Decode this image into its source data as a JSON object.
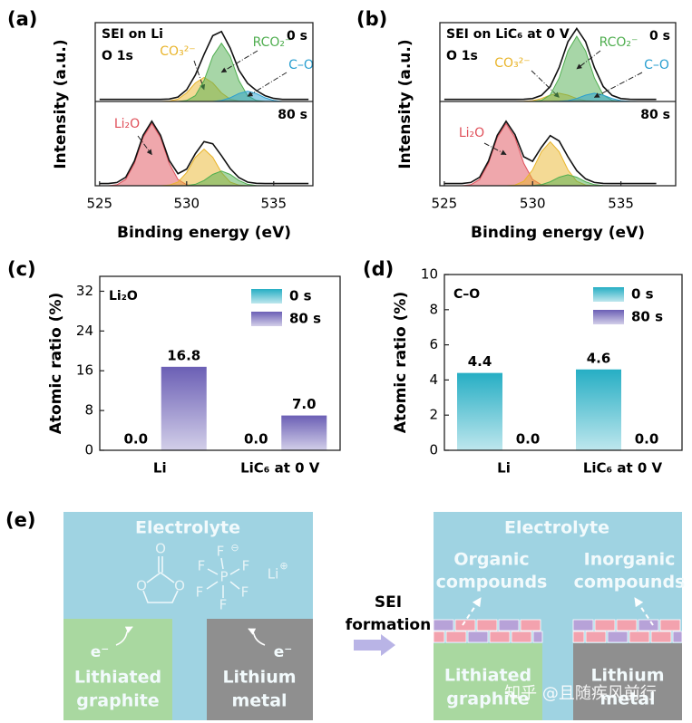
{
  "chart_data": [
    {
      "type": "xps",
      "panel_label": "(a)",
      "x_label": "Binding energy (eV)",
      "y_label": "Intensity (a.u.)",
      "xlim": [
        524.75,
        537.25
      ],
      "xticks": [
        525,
        530,
        535
      ],
      "ylim": [
        0,
        1.15
      ],
      "x": [
        525,
        525.5,
        526,
        526.5,
        527,
        527.5,
        528,
        528.5,
        529,
        529.5,
        530,
        530.5,
        531,
        531.5,
        532,
        532.5,
        533,
        533.5,
        534,
        534.5,
        535,
        535.5,
        536,
        536.5,
        537
      ],
      "subplots": [
        {
          "title": "SEI on Li",
          "core_level": "O 1s",
          "time": "0 s",
          "envelope": {
            "color": "#111111",
            "values": [
              0.03,
              0.03,
              0.03,
              0.03,
              0.03,
              0.03,
              0.03,
              0.03,
              0.036,
              0.065,
              0.17,
              0.386,
              0.686,
              0.96,
              1.021,
              0.778,
              0.458,
              0.265,
              0.16,
              0.084,
              0.045,
              0.03,
              0.03,
              0.03,
              0.03
            ]
          },
          "series": [
            {
              "name": "CO₃²⁻",
              "color": "#e9b52c",
              "values": [
                0,
                0,
                0,
                0,
                0,
                0,
                0,
                0,
                0.006,
                0.035,
                0.126,
                0.271,
                0.35,
                0.271,
                0.126,
                0.035,
                0.006,
                0,
                0,
                0,
                0,
                0,
                0,
                0,
                0
              ]
            },
            {
              "name": "RCO₂⁻",
              "color": "#4fae4f",
              "values": [
                0,
                0,
                0,
                0,
                0,
                0,
                0,
                0,
                0,
                0,
                0.014,
                0.085,
                0.306,
                0.659,
                0.85,
                0.659,
                0.306,
                0.085,
                0.014,
                0,
                0,
                0,
                0,
                0,
                0
              ]
            },
            {
              "name": "C–O",
              "color": "#2a9fd0",
              "values": [
                0,
                0,
                0,
                0,
                0,
                0,
                0,
                0,
                0,
                0,
                0,
                0,
                0,
                0,
                0.015,
                0.054,
                0.116,
                0.15,
                0.116,
                0.054,
                0.015,
                0,
                0,
                0,
                0
              ]
            }
          ]
        },
        {
          "time": "80 s",
          "envelope": {
            "color": "#111111",
            "values": [
              0.03,
              0.03,
              0.044,
              0.115,
              0.336,
              0.689,
              0.88,
              0.689,
              0.345,
              0.165,
              0.227,
              0.438,
              0.602,
              0.573,
              0.41,
              0.235,
              0.111,
              0.05,
              0.033,
              0.03,
              0.03,
              0.03,
              0.03,
              0.03,
              0.03
            ]
          },
          "series": [
            {
              "name": "Li₂O",
              "color": "#e0505a",
              "values": [
                0,
                0,
                0.014,
                0.085,
                0.306,
                0.659,
                0.85,
                0.659,
                0.306,
                0.085,
                0.014,
                0,
                0,
                0,
                0,
                0,
                0,
                0,
                0,
                0,
                0,
                0,
                0,
                0,
                0
              ]
            },
            {
              "color": "#e9b52c",
              "values": [
                0,
                0,
                0,
                0,
                0,
                0,
                0,
                0,
                0.009,
                0.05,
                0.18,
                0.388,
                0.5,
                0.388,
                0.18,
                0.05,
                0.009,
                0,
                0,
                0,
                0,
                0,
                0,
                0,
                0
              ]
            },
            {
              "color": "#4fae4f",
              "values": [
                0,
                0,
                0,
                0,
                0,
                0,
                0,
                0,
                0,
                0,
                0.003,
                0.02,
                0.072,
                0.155,
                0.2,
                0.155,
                0.072,
                0.02,
                0.003,
                0,
                0,
                0,
                0,
                0,
                0
              ]
            }
          ]
        }
      ]
    },
    {
      "type": "xps",
      "panel_label": "(b)",
      "x_label": "Binding energy (eV)",
      "y_label": "Intensity (a.u.)",
      "xlim": [
        524.75,
        538.1
      ],
      "xticks": [
        525,
        530,
        535
      ],
      "ylim": [
        0,
        1.15
      ],
      "x": [
        525,
        525.5,
        526,
        526.5,
        527,
        527.5,
        528,
        528.5,
        529,
        529.5,
        530,
        530.5,
        531,
        531.5,
        532,
        532.5,
        533,
        533.5,
        534,
        534.5,
        535,
        535.5,
        536,
        536.5,
        537
      ],
      "subplots": [
        {
          "title": "SEI on LiC₆ at 0 V",
          "core_level": "O 1s",
          "time": "0 s",
          "envelope": {
            "color": "#111111",
            "values": [
              0.03,
              0.03,
              0.03,
              0.03,
              0.03,
              0.03,
              0.03,
              0.03,
              0.03,
              0.032,
              0.042,
              0.089,
              0.218,
              0.494,
              0.871,
              1.066,
              0.871,
              0.494,
              0.218,
              0.089,
              0.042,
              0.032,
              0.03,
              0.03,
              0.03
            ]
          },
          "series": [
            {
              "name": "CO₃²⁻",
              "color": "#e9b52c",
              "values": [
                0,
                0,
                0,
                0,
                0,
                0,
                0,
                0,
                0,
                0.002,
                0.012,
                0.043,
                0.093,
                0.12,
                0.093,
                0.043,
                0.012,
                0.002,
                0,
                0,
                0,
                0,
                0,
                0,
                0
              ]
            },
            {
              "name": "RCO₂⁻",
              "color": "#4fae4f",
              "values": [
                0,
                0,
                0,
                0,
                0,
                0,
                0,
                0,
                0,
                0,
                0,
                0.016,
                0.095,
                0.342,
                0.736,
                0.95,
                0.736,
                0.342,
                0.095,
                0.016,
                0,
                0,
                0,
                0,
                0
              ]
            },
            {
              "name": "C–O",
              "color": "#2a9fd0",
              "values": [
                0,
                0,
                0,
                0,
                0,
                0,
                0,
                0,
                0,
                0,
                0,
                0,
                0,
                0.002,
                0.012,
                0.043,
                0.093,
                0.12,
                0.093,
                0.043,
                0.012,
                0.002,
                0,
                0,
                0
              ]
            }
          ]
        },
        {
          "time": "80 s",
          "envelope": {
            "color": "#111111",
            "values": [
              0.03,
              0.03,
              0.03,
              0.044,
              0.115,
              0.336,
              0.689,
              0.88,
              0.699,
              0.396,
              0.333,
              0.524,
              0.684,
              0.611,
              0.396,
              0.206,
              0.094,
              0.045,
              0.032,
              0.03,
              0.03,
              0.03,
              0.03,
              0.03,
              0.03
            ]
          },
          "series": [
            {
              "name": "Li₂O",
              "color": "#e0505a",
              "values": [
                0,
                0,
                0,
                0.014,
                0.085,
                0.306,
                0.659,
                0.85,
                0.659,
                0.306,
                0.085,
                0.014,
                0,
                0,
                0,
                0,
                0,
                0,
                0,
                0,
                0,
                0,
                0,
                0,
                0
              ]
            },
            {
              "color": "#e9b52c",
              "values": [
                0,
                0,
                0,
                0,
                0,
                0,
                0,
                0,
                0.01,
                0.06,
                0.216,
                0.465,
                0.6,
                0.465,
                0.216,
                0.06,
                0.01,
                0,
                0,
                0,
                0,
                0,
                0,
                0,
                0
              ]
            },
            {
              "color": "#4fae4f",
              "values": [
                0,
                0,
                0,
                0,
                0,
                0,
                0,
                0,
                0,
                0,
                0.002,
                0.015,
                0.054,
                0.116,
                0.15,
                0.116,
                0.054,
                0.015,
                0.002,
                0,
                0,
                0,
                0,
                0,
                0
              ]
            }
          ]
        }
      ]
    },
    {
      "type": "bar",
      "panel_label": "(c)",
      "y_label": "Atomic ratio (%)",
      "annotation": "Li₂O",
      "categories": [
        "Li",
        "LiC₆ at 0 V"
      ],
      "ylim": [
        0,
        35
      ],
      "yticks": [
        0,
        8,
        16,
        24,
        32
      ],
      "legend": "upper right",
      "series": [
        {
          "name": "0 s",
          "color": "#26aec4",
          "values": [
            0,
            0
          ],
          "value_labels": [
            "0.0",
            "0.0"
          ]
        },
        {
          "name": "80 s",
          "color": "#6b5fb5",
          "values": [
            16.8,
            7
          ],
          "value_labels": [
            "16.8",
            "7.0"
          ]
        }
      ]
    },
    {
      "type": "bar",
      "panel_label": "(d)",
      "y_label": "Atomic ratio (%)",
      "annotation": "C–O",
      "categories": [
        "Li",
        "LiC₆ at 0 V"
      ],
      "ylim": [
        0,
        10
      ],
      "yticks": [
        0,
        2,
        4,
        6,
        8,
        10
      ],
      "legend": "upper right",
      "series": [
        {
          "name": "0 s",
          "color": "#26aec4",
          "values": [
            4.4,
            4.6
          ],
          "value_labels": [
            "4.4",
            "4.6"
          ]
        },
        {
          "name": "80 s",
          "color": "#6b5fb5",
          "values": [
            0,
            0
          ],
          "value_labels": [
            "0.0",
            "0.0"
          ]
        }
      ]
    }
  ],
  "panel_e": {
    "panel_label": "(e)",
    "before": {
      "electrolyte": "Electrolyte",
      "ec_atoms": [
        "O",
        "O",
        "O"
      ],
      "pf6_atoms": [
        "F",
        "F",
        "F",
        "F",
        "F",
        "F",
        "P"
      ],
      "pf6_charge": "⊖",
      "cation": "Li",
      "cation_charge": "⊕",
      "electron_left": "e⁻",
      "electron_right": "e⁻",
      "anode_left": [
        "Lithiated",
        "graphite"
      ],
      "anode_right": [
        "Lithium",
        "metal"
      ]
    },
    "process": [
      "SEI",
      "formation"
    ],
    "after": {
      "electrolyte": "Electrolyte",
      "left_label": [
        "Organic",
        "compounds"
      ],
      "right_label": [
        "Inorganic",
        "compounds"
      ],
      "anode_left": [
        "Lithiated",
        "graphite"
      ],
      "anode_right": [
        "Lithium",
        "metal"
      ]
    },
    "watermark": "知乎 @且随疾风前行"
  }
}
